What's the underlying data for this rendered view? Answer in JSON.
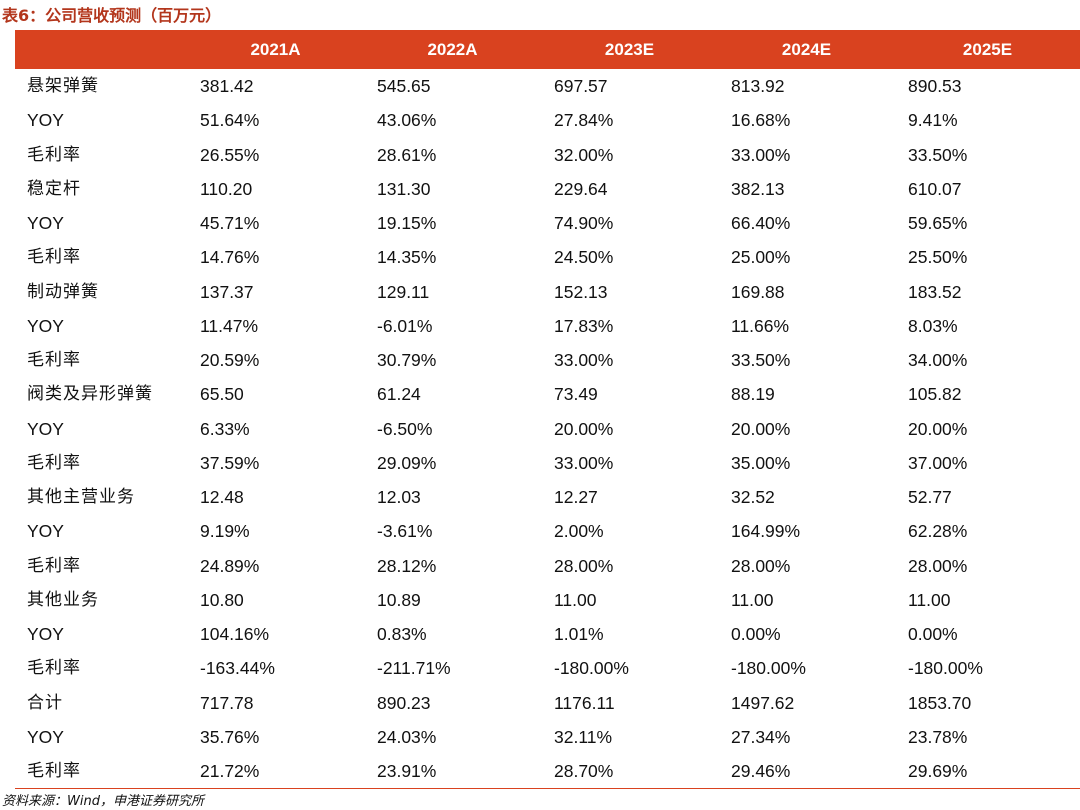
{
  "caption": "表6：公司营收预测（百万元）",
  "headers": [
    "",
    "2021A",
    "2022A",
    "2023E",
    "2024E",
    "2025E"
  ],
  "rows": [
    [
      "悬架弹簧",
      "381.42",
      "545.65",
      "697.57",
      "813.92",
      "890.53"
    ],
    [
      "YOY",
      "51.64%",
      "43.06%",
      "27.84%",
      "16.68%",
      "9.41%"
    ],
    [
      "毛利率",
      "26.55%",
      "28.61%",
      "32.00%",
      "33.00%",
      "33.50%"
    ],
    [
      "稳定杆",
      "110.20",
      "131.30",
      "229.64",
      "382.13",
      "610.07"
    ],
    [
      "YOY",
      "45.71%",
      "19.15%",
      "74.90%",
      "66.40%",
      "59.65%"
    ],
    [
      "毛利率",
      "14.76%",
      "14.35%",
      "24.50%",
      "25.00%",
      "25.50%"
    ],
    [
      "制动弹簧",
      "137.37",
      "129.11",
      "152.13",
      "169.88",
      "183.52"
    ],
    [
      "YOY",
      "11.47%",
      "-6.01%",
      "17.83%",
      "11.66%",
      "8.03%"
    ],
    [
      "毛利率",
      "20.59%",
      "30.79%",
      "33.00%",
      "33.50%",
      "34.00%"
    ],
    [
      "阀类及异形弹簧",
      "65.50",
      "61.24",
      "73.49",
      "88.19",
      "105.82"
    ],
    [
      "YOY",
      "6.33%",
      "-6.50%",
      "20.00%",
      "20.00%",
      "20.00%"
    ],
    [
      "毛利率",
      "37.59%",
      "29.09%",
      "33.00%",
      "35.00%",
      "37.00%"
    ],
    [
      "其他主营业务",
      "12.48",
      "12.03",
      "12.27",
      "32.52",
      "52.77"
    ],
    [
      "YOY",
      "9.19%",
      "-3.61%",
      "2.00%",
      "164.99%",
      "62.28%"
    ],
    [
      "毛利率",
      "24.89%",
      "28.12%",
      "28.00%",
      "28.00%",
      "28.00%"
    ],
    [
      "其他业务",
      "10.80",
      "10.89",
      "11.00",
      "11.00",
      "11.00"
    ],
    [
      "YOY",
      "104.16%",
      "0.83%",
      "1.01%",
      "0.00%",
      "0.00%"
    ],
    [
      "毛利率",
      "-163.44%",
      "-211.71%",
      "-180.00%",
      "-180.00%",
      "-180.00%"
    ],
    [
      "合计",
      "717.78",
      "890.23",
      "1176.11",
      "1497.62",
      "1853.70"
    ],
    [
      "YOY",
      "35.76%",
      "24.03%",
      "32.11%",
      "27.34%",
      "23.78%"
    ],
    [
      "毛利率",
      "21.72%",
      "23.91%",
      "28.70%",
      "29.46%",
      "29.69%"
    ]
  ],
  "source": "资料来源：Wind，申港证券研究所",
  "colors": {
    "header_bg": "#d9421f",
    "caption": "#b3361c"
  }
}
